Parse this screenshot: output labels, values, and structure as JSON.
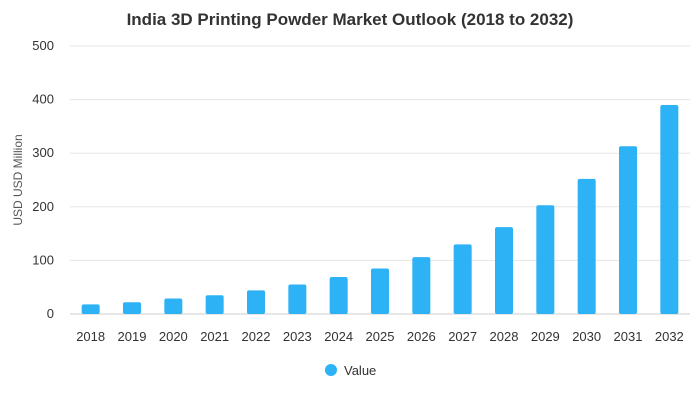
{
  "chart_data": {
    "type": "bar",
    "title": "India 3D Printing Powder Market Outlook (2018 to 2032)",
    "xlabel": "",
    "ylabel": "USD USD Million",
    "ylim": [
      0,
      500
    ],
    "yticks": [
      0,
      100,
      200,
      300,
      400,
      500
    ],
    "categories": [
      "2018",
      "2019",
      "2020",
      "2021",
      "2022",
      "2023",
      "2024",
      "2025",
      "2026",
      "2027",
      "2028",
      "2029",
      "2030",
      "2031",
      "2032"
    ],
    "series": [
      {
        "name": "Value",
        "color": "#2db2f5",
        "values": [
          18,
          22,
          29,
          35,
          44,
          55,
          69,
          85,
          106,
          130,
          162,
          203,
          252,
          313,
          390
        ]
      }
    ],
    "grid": true,
    "legend": "bottom-center"
  }
}
